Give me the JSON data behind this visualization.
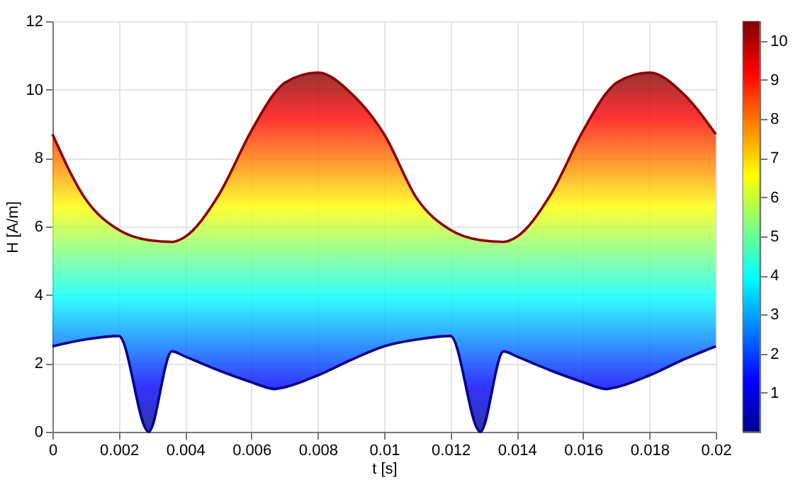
{
  "chart_data": {
    "type": "line",
    "xlabel": "t [s]",
    "ylabel": "H [A/m]",
    "x": [
      0,
      0.001,
      0.002,
      0.0029,
      0.0036,
      0.004,
      0.005,
      0.006,
      0.0067,
      0.007,
      0.008,
      0.009,
      0.01,
      0.011,
      0.012,
      0.0129,
      0.0136,
      0.014,
      0.015,
      0.016,
      0.0167,
      0.017,
      0.018,
      0.019,
      0.02
    ],
    "series": [
      {
        "color": "#8b0000",
        "values": [
          8.7,
          6.8,
          5.9,
          5.6,
          5.55,
          5.7,
          6.9,
          8.8,
          9.9,
          10.2,
          10.5,
          9.9,
          8.7,
          6.8,
          5.9,
          5.6,
          5.55,
          5.7,
          6.9,
          8.8,
          9.9,
          10.2,
          10.5,
          9.9,
          8.7
        ],
        "lower": [
          2.5,
          2.7,
          2.8,
          0,
          2.35,
          2.2,
          1.8,
          1.45,
          1.25,
          1.3,
          1.65,
          2.1,
          2.5,
          2.7,
          2.8,
          0,
          2.35,
          2.2,
          1.8,
          1.45,
          1.25,
          1.3,
          1.65,
          2.1,
          2.5
        ],
        "upper": [
          8.7,
          6.8,
          5.9,
          5.6,
          5.55,
          5.7,
          6.9,
          8.8,
          9.9,
          10.2,
          10.5,
          9.9,
          8.7,
          6.8,
          5.9,
          5.6,
          5.55,
          5.7,
          6.9,
          8.8,
          9.9,
          10.2,
          10.5,
          9.9,
          8.7
        ]
      },
      {
        "color": "#00008b",
        "values": [
          2.5,
          2.7,
          2.8,
          0,
          2.35,
          2.2,
          1.8,
          1.45,
          1.25,
          1.3,
          1.65,
          2.1,
          2.5,
          2.7,
          2.8,
          0,
          2.35,
          2.2,
          1.8,
          1.45,
          1.25,
          1.3,
          1.65,
          2.1,
          2.5
        ]
      }
    ],
    "xlim": [
      0,
      0.02
    ],
    "xticks": [
      0,
      0.002,
      0.004,
      0.006,
      0.008,
      0.01,
      0.012,
      0.014,
      0.016,
      0.018,
      0.02
    ],
    "ylim": [
      0,
      12
    ],
    "yticks": [
      0,
      2,
      4,
      6,
      8,
      10,
      12
    ],
    "clim": [
      0,
      10.5
    ],
    "cticks": [
      1,
      2,
      3,
      4,
      5,
      6,
      7,
      8,
      9,
      10
    ],
    "grid": true,
    "marker": "none",
    "line_style": "solid"
  }
}
